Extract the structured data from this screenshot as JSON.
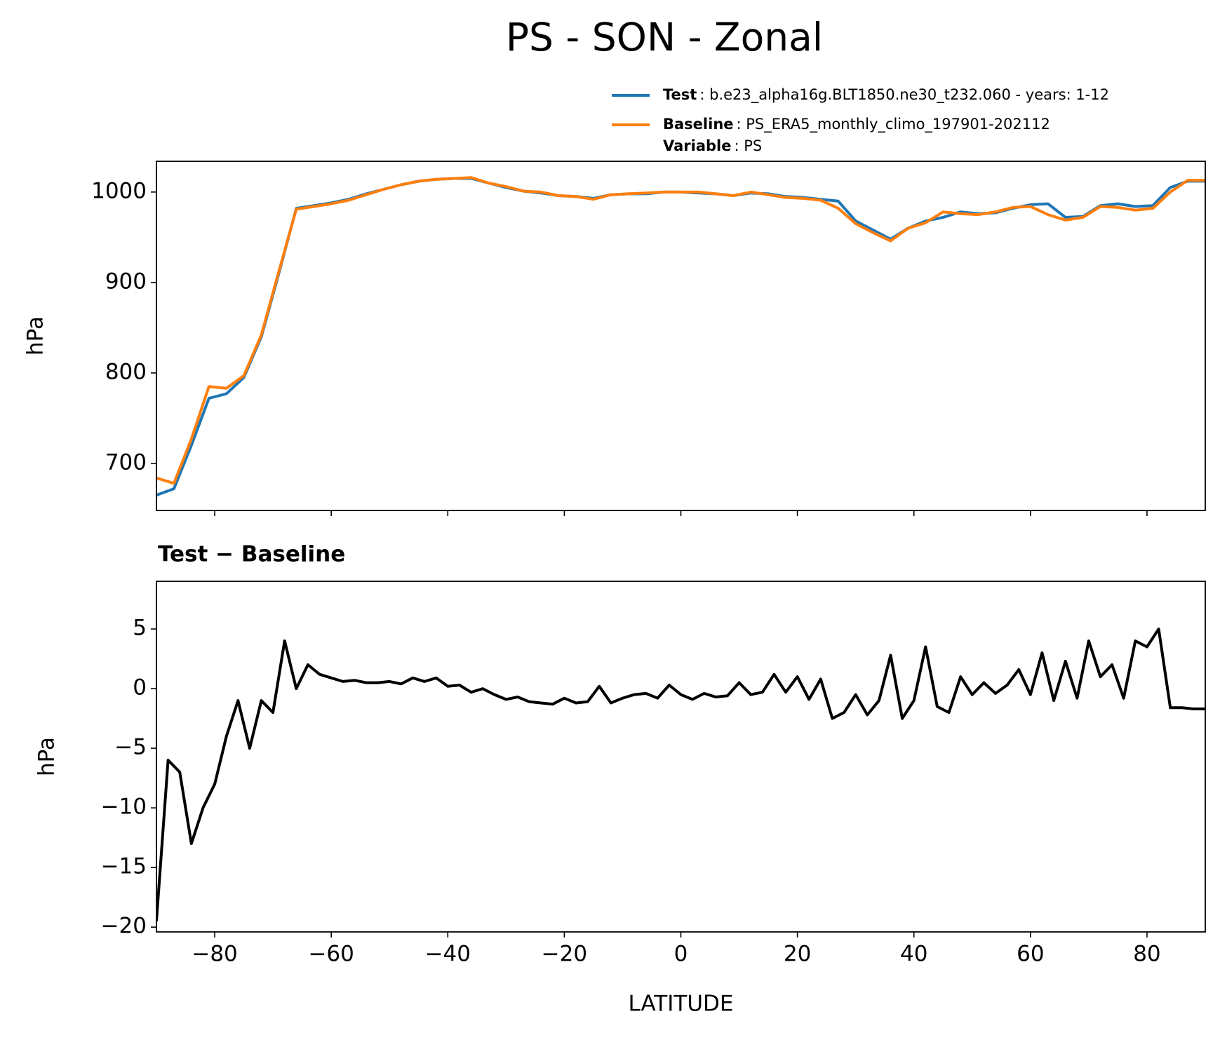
{
  "title": "PS - SON - Zonal",
  "chart_data": [
    {
      "type": "line",
      "ylabel": "hPa",
      "x": [
        -90,
        -87,
        -84,
        -81,
        -78,
        -75,
        -72,
        -69,
        -66,
        -63,
        -60,
        -57,
        -54,
        -51,
        -48,
        -45,
        -42,
        -39,
        -36,
        -33,
        -30,
        -27,
        -24,
        -21,
        -18,
        -15,
        -12,
        -9,
        -6,
        -3,
        0,
        3,
        6,
        9,
        12,
        15,
        18,
        21,
        24,
        27,
        30,
        33,
        36,
        39,
        42,
        45,
        48,
        51,
        54,
        57,
        60,
        63,
        66,
        69,
        72,
        75,
        78,
        81,
        84,
        87,
        90
      ],
      "series": [
        {
          "name": "Test",
          "label": ": b.e23_alpha16g.BLT1850.ne30_t232.060 - years: 1-12",
          "color": "#1f77b4",
          "values": [
            665,
            672,
            720,
            772,
            777,
            795,
            840,
            910,
            982,
            985,
            988,
            992,
            998,
            1003,
            1008,
            1012,
            1014,
            1015,
            1015,
            1010,
            1005,
            1001,
            999,
            996,
            995,
            993,
            997,
            998,
            998,
            1000,
            1000,
            999,
            998,
            996,
            999,
            998,
            995,
            994,
            992,
            990,
            968,
            958,
            948,
            960,
            968,
            972,
            978,
            976,
            977,
            982,
            986,
            987,
            972,
            973,
            985,
            987,
            984,
            985,
            1005,
            1012,
            1012
          ]
        },
        {
          "name": "Baseline",
          "label": ": PS_ERA5_monthly_climo_197901-202112",
          "color": "#ff7f0e",
          "values": [
            684,
            678,
            727,
            785,
            783,
            797,
            842,
            912,
            981,
            984,
            987,
            991,
            997,
            1003,
            1008,
            1012,
            1014,
            1015,
            1016,
            1010,
            1006,
            1001,
            1000,
            996,
            995,
            992,
            997,
            998,
            999,
            1000,
            1000,
            1000,
            998,
            996,
            1000,
            997,
            994,
            993,
            991,
            982,
            965,
            955,
            946,
            960,
            966,
            978,
            976,
            975,
            978,
            983,
            984,
            975,
            969,
            972,
            984,
            983,
            980,
            982,
            1000,
            1013,
            1013
          ]
        }
      ],
      "legend_note": {
        "name": "Variable",
        "label": ": PS"
      },
      "xlim": [
        -90,
        90
      ],
      "xticks": [
        -80,
        -60,
        -40,
        -20,
        0,
        20,
        40,
        60,
        80
      ],
      "ylim": [
        648,
        1034
      ],
      "yticks": [
        700,
        800,
        900,
        1000
      ]
    },
    {
      "type": "line",
      "title": "Test − Baseline",
      "ylabel": "hPa",
      "xlabel": "LATITUDE",
      "x": [
        -90,
        -88,
        -86,
        -84,
        -82,
        -80,
        -78,
        -76,
        -74,
        -72,
        -70,
        -68,
        -66,
        -64,
        -62,
        -60,
        -58,
        -56,
        -54,
        -52,
        -50,
        -48,
        -46,
        -44,
        -42,
        -40,
        -38,
        -36,
        -34,
        -32,
        -30,
        -28,
        -26,
        -24,
        -22,
        -20,
        -18,
        -16,
        -14,
        -12,
        -10,
        -8,
        -6,
        -4,
        -2,
        0,
        2,
        4,
        6,
        8,
        10,
        12,
        14,
        16,
        18,
        20,
        22,
        24,
        26,
        28,
        30,
        32,
        34,
        36,
        38,
        40,
        42,
        44,
        46,
        48,
        50,
        52,
        54,
        56,
        58,
        60,
        62,
        64,
        66,
        68,
        70,
        72,
        74,
        76,
        78,
        80,
        82,
        84,
        86,
        88,
        90
      ],
      "series": [
        {
          "color": "#000000",
          "values": [
            -19.5,
            -6,
            -7,
            -13,
            -10,
            -8,
            -4,
            -1,
            -5,
            -1,
            -2,
            4,
            0,
            2,
            1.2,
            0.9,
            0.6,
            0.7,
            0.5,
            0.5,
            0.6,
            0.4,
            0.9,
            0.6,
            0.9,
            0.2,
            0.3,
            -0.3,
            0,
            -0.5,
            -0.9,
            -0.7,
            -1.1,
            -1.2,
            -1.3,
            -0.8,
            -1.2,
            -1.1,
            0.2,
            -1.2,
            -0.8,
            -0.5,
            -0.4,
            -0.8,
            0.3,
            -0.5,
            -0.9,
            -0.4,
            -0.7,
            -0.6,
            0.5,
            -0.5,
            -0.3,
            1.2,
            -0.3,
            1,
            -0.9,
            0.8,
            -2.5,
            -2,
            -0.5,
            -2.2,
            -1,
            2.8,
            -2.5,
            -1,
            3.5,
            -1.5,
            -2,
            1,
            -0.5,
            0.5,
            -0.4,
            0.3,
            1.6,
            -0.5,
            3,
            -1,
            2.3,
            -0.8,
            4,
            1,
            2,
            -0.8,
            4,
            3.5,
            5,
            -1.6,
            -1.6,
            -1.7,
            -1.7
          ]
        }
      ],
      "xlim": [
        -90,
        90
      ],
      "xticks": [
        {
          "value": -80,
          "label": "−80"
        },
        {
          "value": -60,
          "label": "−60"
        },
        {
          "value": -40,
          "label": "−40"
        },
        {
          "value": -20,
          "label": "−20"
        },
        0,
        20,
        40,
        60,
        80
      ],
      "ylim": [
        -20.4,
        9.0
      ],
      "yticks": [
        {
          "value": -20,
          "label": "−20"
        },
        {
          "value": -15,
          "label": "−15"
        },
        {
          "value": -10,
          "label": "−10"
        },
        {
          "value": -5,
          "label": "−5"
        },
        0,
        5
      ]
    }
  ]
}
